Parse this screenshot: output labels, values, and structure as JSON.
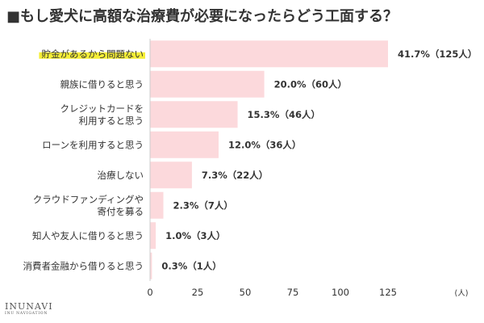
{
  "logo": {
    "main": "INUNAVI",
    "sub": "INU NAVIGATION"
  },
  "chart_data": {
    "type": "bar",
    "orientation": "horizontal",
    "title": "■もし愛犬に高額な治療費が必要になったらどう工面する？",
    "categories": [
      [
        "貯金があるから問題ない"
      ],
      [
        "親族に借りると思う"
      ],
      [
        "クレジットカードを",
        "利用すると思う"
      ],
      [
        "ローンを利用すると思う"
      ],
      [
        "治療しない"
      ],
      [
        "クラウドファンディングや",
        "寄付を募る"
      ],
      [
        "知人や友人に借りると思う"
      ],
      [
        "消費者金融から借りると思う"
      ]
    ],
    "values": [
      125,
      60,
      46,
      36,
      22,
      7,
      3,
      1
    ],
    "value_labels": [
      "41.7%（125人）",
      "20.0%（60人）",
      "15.3%（46人）",
      "12.0%（36人）",
      "7.3%（22人）",
      "2.3%（7人）",
      "1.0%（3人）",
      "0.3%（1人）"
    ],
    "highlight_index": 0,
    "xlim": [
      0,
      125
    ],
    "xticks": [
      0,
      25,
      50,
      75,
      100,
      125
    ],
    "xunit": "(人)",
    "grid": false,
    "colors": {
      "bar": "#FCD9DC",
      "highlight": "#F5EE36",
      "axis": "#cccccc"
    }
  }
}
